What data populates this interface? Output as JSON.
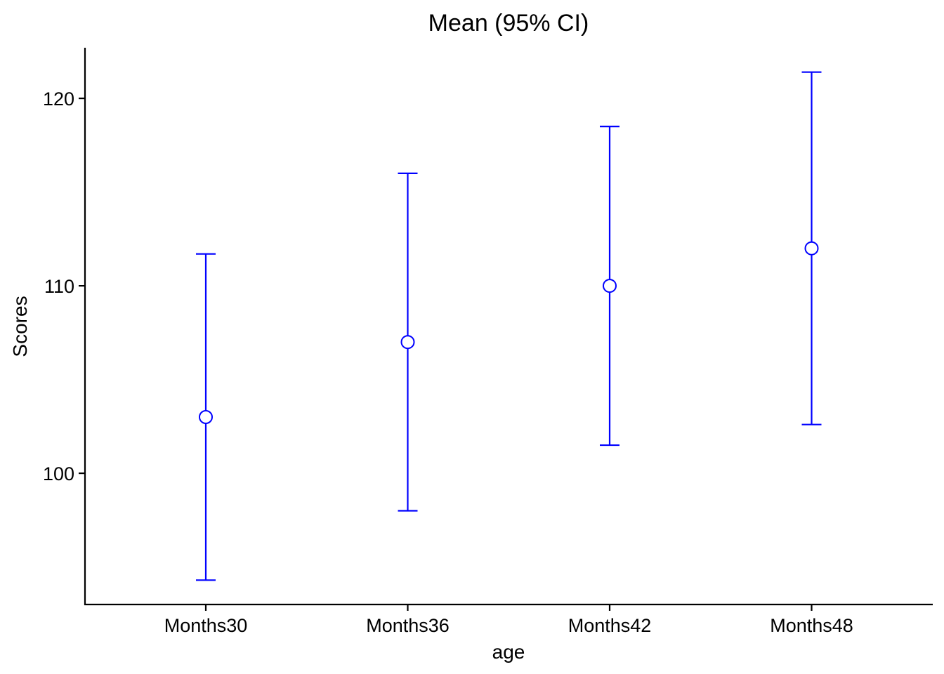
{
  "chart_data": {
    "type": "scatter",
    "title": "Mean (95% CI)",
    "xlabel": "age",
    "ylabel": "Scores",
    "categories": [
      "Months30",
      "Months36",
      "Months42",
      "Months48"
    ],
    "series": [
      {
        "values": [
          103.0,
          107.0,
          110.0,
          112.0
        ],
        "ci_lower": [
          94.3,
          98.0,
          101.5,
          102.6
        ],
        "ci_upper": [
          111.7,
          116.0,
          118.5,
          121.4
        ]
      }
    ],
    "yticks": [
      100,
      110,
      120
    ],
    "ylim": [
      93.0,
      122.7
    ],
    "grid": false,
    "legend": "none",
    "colors": {
      "series": "#0000ff",
      "point_fill": "#ffffff",
      "axis": "#000000"
    }
  }
}
